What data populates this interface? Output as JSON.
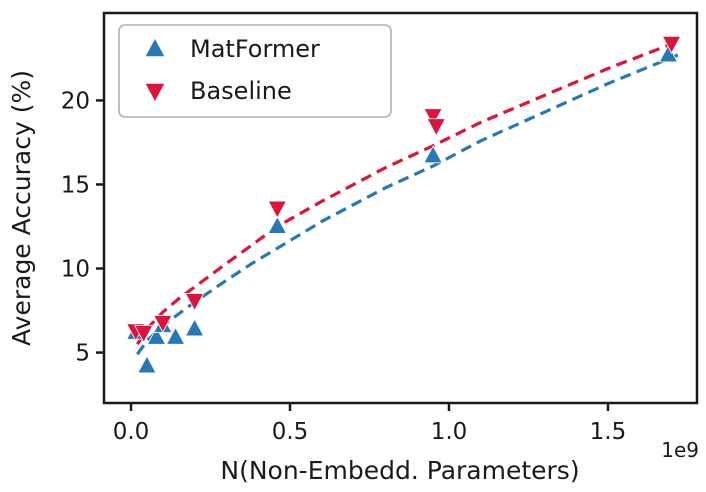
{
  "chart_data": {
    "type": "scatter",
    "title": "",
    "xlabel": "N(Non-Embedd. Parameters)",
    "ylabel": "Average Accuracy (%)",
    "x_offset_text": "1e9",
    "xlim": [
      -0.085,
      1.78
    ],
    "ylim": [
      2.0,
      25.2
    ],
    "xticks": [
      0.0,
      0.5,
      1.0,
      1.5
    ],
    "xtick_labels": [
      "0.0",
      "0.5",
      "1.0",
      "1.5"
    ],
    "yticks": [
      5,
      10,
      15,
      20
    ],
    "ytick_labels": [
      "5",
      "10",
      "15",
      "20"
    ],
    "grid": false,
    "legend": {
      "position": "upper-left",
      "entries": [
        "MatFormer",
        "Baseline"
      ]
    },
    "colors": {
      "matformer": "#2878b5",
      "baseline": "#dc143c",
      "spine": "#1a1a1a",
      "legend_border": "#b0b0b0"
    },
    "series": [
      {
        "name": "MatFormer",
        "marker": "triangle-up",
        "color": "#2878b5",
        "points": [
          [
            0.015,
            6.2
          ],
          [
            0.05,
            4.2
          ],
          [
            0.08,
            5.9
          ],
          [
            0.1,
            6.6
          ],
          [
            0.14,
            5.9
          ],
          [
            0.2,
            6.4
          ],
          [
            0.46,
            12.5
          ],
          [
            0.95,
            16.7
          ],
          [
            1.69,
            22.7
          ]
        ],
        "trend_style": "dashed",
        "trend": [
          [
            0.02,
            4.9
          ],
          [
            0.05,
            5.7
          ],
          [
            0.1,
            6.6
          ],
          [
            0.15,
            7.3
          ],
          [
            0.2,
            8.0
          ],
          [
            0.3,
            9.3
          ],
          [
            0.38,
            10.3
          ],
          [
            0.46,
            11.2
          ],
          [
            0.6,
            12.8
          ],
          [
            0.7,
            13.8
          ],
          [
            0.8,
            14.8
          ],
          [
            0.95,
            16.1
          ],
          [
            1.1,
            17.6
          ],
          [
            1.3,
            19.3
          ],
          [
            1.5,
            21.0
          ],
          [
            1.72,
            22.7
          ]
        ]
      },
      {
        "name": "Baseline",
        "marker": "triangle-down",
        "color": "#dc143c",
        "points": [
          [
            0.015,
            6.3
          ],
          [
            0.04,
            6.2
          ],
          [
            0.1,
            6.8
          ],
          [
            0.2,
            8.1
          ],
          [
            0.46,
            13.6
          ],
          [
            0.95,
            19.1
          ],
          [
            0.96,
            18.5
          ],
          [
            1.7,
            23.4
          ]
        ],
        "trend_style": "dashed",
        "trend": [
          [
            0.02,
            5.5
          ],
          [
            0.05,
            6.4
          ],
          [
            0.1,
            7.4
          ],
          [
            0.15,
            8.2
          ],
          [
            0.2,
            8.9
          ],
          [
            0.3,
            10.3
          ],
          [
            0.38,
            11.4
          ],
          [
            0.46,
            12.5
          ],
          [
            0.6,
            14.0
          ],
          [
            0.7,
            15.0
          ],
          [
            0.8,
            16.0
          ],
          [
            0.95,
            17.3
          ],
          [
            1.1,
            18.7
          ],
          [
            1.3,
            20.3
          ],
          [
            1.5,
            21.9
          ],
          [
            1.72,
            23.5
          ]
        ]
      }
    ]
  }
}
